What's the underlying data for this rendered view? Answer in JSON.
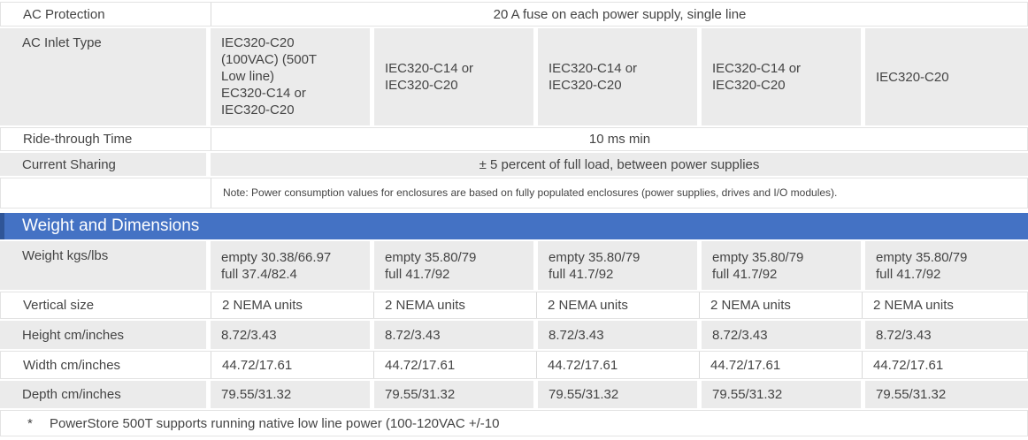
{
  "colors": {
    "banner_bg": "#4472C4",
    "banner_accent": "#2F5597",
    "row_gray_bg": "#EBEBEB",
    "border_light": "#E3E3E3",
    "separator": "#D9D9D9",
    "text": "#444444",
    "banner_text": "#FFFFFF"
  },
  "table": {
    "power_rows": [
      {
        "label": "AC Protection",
        "value": "20 A fuse on each power supply, single line"
      },
      {
        "label": "AC Inlet Type",
        "cells": [
          "IEC320-C20\n(100VAC) (500T\nLow line)\nEC320-C14 or\nIEC320-C20",
          "IEC320-C14 or\nIEC320-C20",
          "IEC320-C14 or\nIEC320-C20",
          "IEC320-C14 or\nIEC320-C20",
          "IEC320-C20"
        ]
      },
      {
        "label": "Ride-through Time",
        "value": "10 ms min"
      },
      {
        "label": "Current Sharing",
        "value": "± 5 percent of full load, between power supplies"
      },
      {
        "label": "",
        "value": "Note: Power consumption values for enclosures are based on fully populated enclosures (power supplies, drives and I/O modules)."
      }
    ],
    "section_header": "Weight and Dimensions",
    "dimension_rows": [
      {
        "label": "Weight kgs/lbs",
        "cells": [
          "empty 30.38/66.97\nfull 37.4/82.4",
          "empty 35.80/79\nfull 41.7/92",
          "empty 35.80/79\nfull 41.7/92",
          "empty 35.80/79\nfull 41.7/92",
          "empty 35.80/79\nfull 41.7/92"
        ]
      },
      {
        "label": "Vertical size",
        "cells": [
          "2 NEMA units",
          "2 NEMA units",
          "2 NEMA units",
          "2 NEMA units",
          "2 NEMA units"
        ]
      },
      {
        "label": "Height cm/inches",
        "cells": [
          "8.72/3.43",
          "8.72/3.43",
          "8.72/3.43",
          "8.72/3.43",
          "8.72/3.43"
        ]
      },
      {
        "label": "Width cm/inches",
        "cells": [
          "44.72/17.61",
          "44.72/17.61",
          "44.72/17.61",
          "44.72/17.61",
          "44.72/17.61"
        ]
      },
      {
        "label": "Depth cm/inches",
        "cells": [
          "79.55/31.32",
          "79.55/31.32",
          "79.55/31.32",
          "79.55/31.32",
          "79.55/31.32"
        ]
      }
    ],
    "footnote": {
      "marker": "*",
      "text": "PowerStore 500T supports running native low line power (100-120VAC +/-10"
    }
  }
}
